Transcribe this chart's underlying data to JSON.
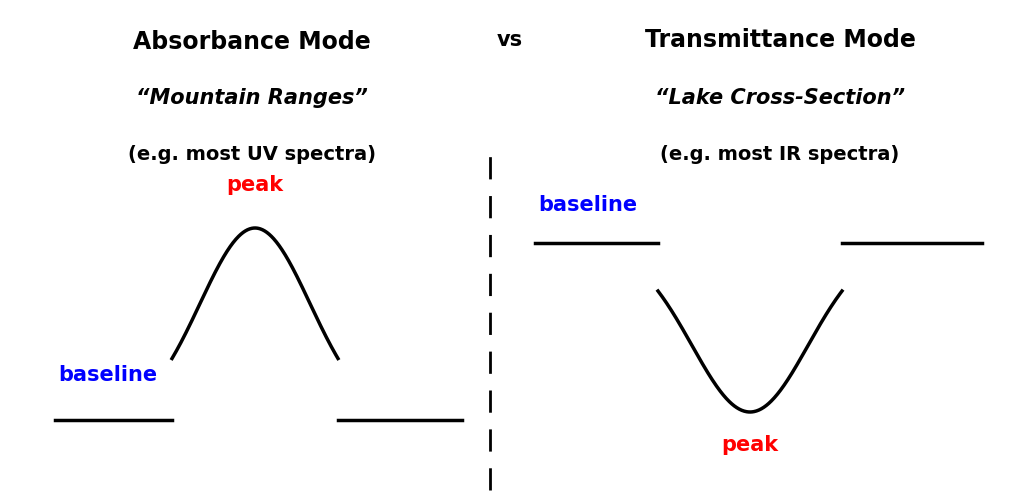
{
  "title_left": "Absorbance Mode",
  "title_right": "Transmittance Mode",
  "subtitle_left": "“Mountain Ranges”",
  "subtitle_right": "“Lake Cross-Section”",
  "caption_left": "(e.g. most UV spectra)",
  "caption_right": "(e.g. most IR spectra)",
  "vs_text": "vs",
  "peak_color": "#ff0000",
  "baseline_color": "#0000ff",
  "curve_color": "#000000",
  "bg_color": "#ffffff",
  "title_fontsize": 17,
  "subtitle_fontsize": 15,
  "caption_fontsize": 14,
  "label_fontsize": 15,
  "vs_fontsize": 15,
  "line_width": 2.5
}
